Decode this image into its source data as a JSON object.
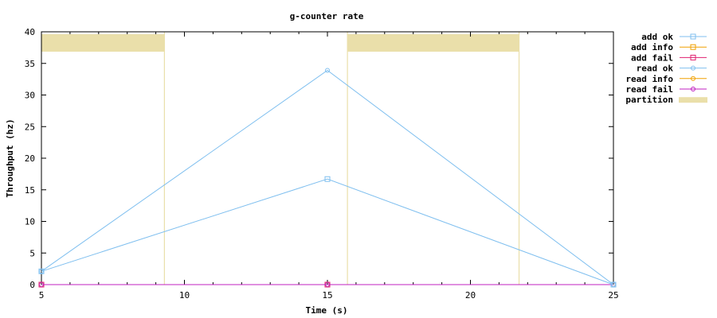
{
  "chart_data": {
    "type": "line",
    "title": "g-counter rate",
    "xlabel": "Time (s)",
    "ylabel": "Throughput (hz)",
    "xlim": [
      5,
      25
    ],
    "ylim": [
      0,
      40
    ],
    "xticks": [
      "5",
      "10",
      "15",
      "20",
      "25"
    ],
    "yticks": [
      "0",
      "5",
      "10",
      "15",
      "20",
      "25",
      "30",
      "35",
      "40"
    ],
    "grid": false,
    "legend_position": "right",
    "series": [
      {
        "name": "add ok",
        "color": "#7fbfef",
        "marker": "square",
        "x": [
          5,
          15,
          25
        ],
        "y": [
          2.1,
          16.7,
          0
        ]
      },
      {
        "name": "add info",
        "color": "#f0a000",
        "marker": "square",
        "x": [
          5,
          15,
          25
        ],
        "y": [
          0,
          0,
          0
        ]
      },
      {
        "name": "add fail",
        "color": "#e0206f",
        "marker": "square",
        "x": [
          5,
          15,
          25
        ],
        "y": [
          0,
          0,
          0
        ]
      },
      {
        "name": "read ok",
        "color": "#7fbfef",
        "marker": "circle",
        "x": [
          5,
          15,
          25
        ],
        "y": [
          2.1,
          33.9,
          0
        ]
      },
      {
        "name": "read info",
        "color": "#f0a000",
        "marker": "circle",
        "x": [
          5,
          15,
          25
        ],
        "y": [
          0,
          0,
          0
        ]
      },
      {
        "name": "read fail",
        "color": "#c020c0",
        "marker": "circle",
        "x": [
          5,
          15,
          25
        ],
        "y": [
          0,
          0,
          0
        ]
      }
    ],
    "partition": {
      "name": "partition",
      "color": "#eadfaa",
      "intervals": [
        [
          5,
          9.3
        ],
        [
          15.7,
          21.7
        ]
      ]
    }
  }
}
